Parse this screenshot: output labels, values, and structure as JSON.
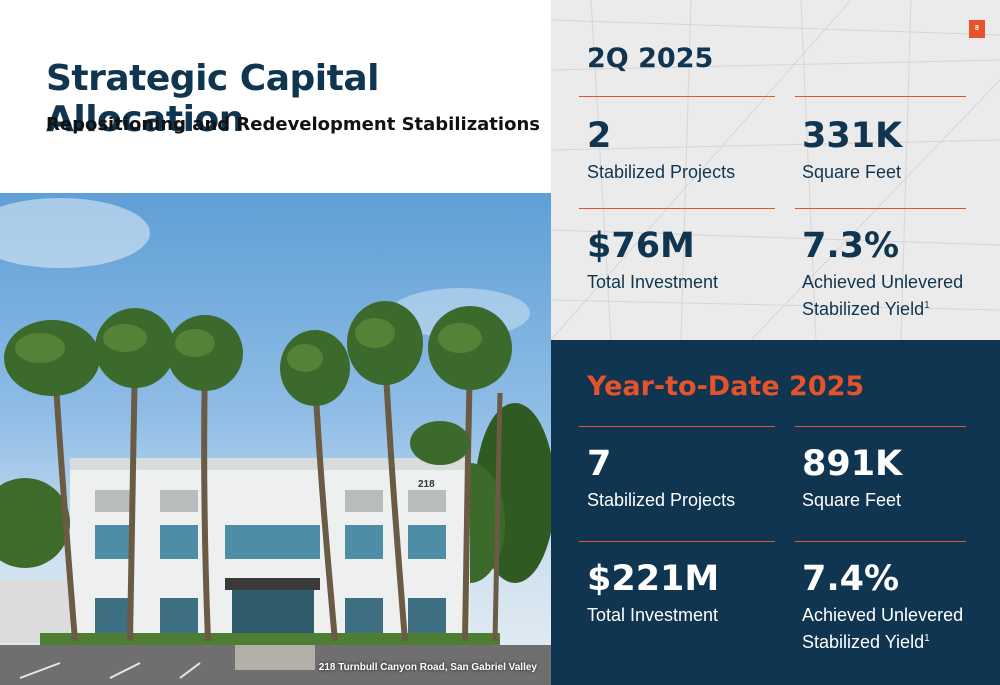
{
  "page_number": "8",
  "title": "Strategic Capital Allocation",
  "subtitle": "Repositioning and Redevelopment Stabilizations",
  "photo_caption": "218 Turnbull Canyon Road,  San Gabriel Valley",
  "building_number": "218",
  "quarter": {
    "heading": "2Q 2025",
    "stats": [
      {
        "value": "2",
        "label": "Stabilized Projects"
      },
      {
        "value": "331K",
        "label": "Square Feet"
      },
      {
        "value": "$76M",
        "label": "Total Investment"
      },
      {
        "value": "7.3%",
        "label_line1": "Achieved Unlevered",
        "label_line2": "Stabilized Yield",
        "footnote": "1"
      }
    ]
  },
  "ytd": {
    "heading": "Year-to-Date 2025",
    "stats": [
      {
        "value": "7",
        "label": "Stabilized Projects"
      },
      {
        "value": "891K",
        "label": "Square Feet"
      },
      {
        "value": "$221M",
        "label": "Total Investment"
      },
      {
        "value": "7.4%",
        "label_line1": "Achieved Unlevered",
        "label_line2": "Stabilized Yield",
        "footnote": "1"
      }
    ]
  },
  "colors": {
    "navy": "#0f3550",
    "accent": "#e4532c",
    "panel_gray": "#ebebeb"
  }
}
